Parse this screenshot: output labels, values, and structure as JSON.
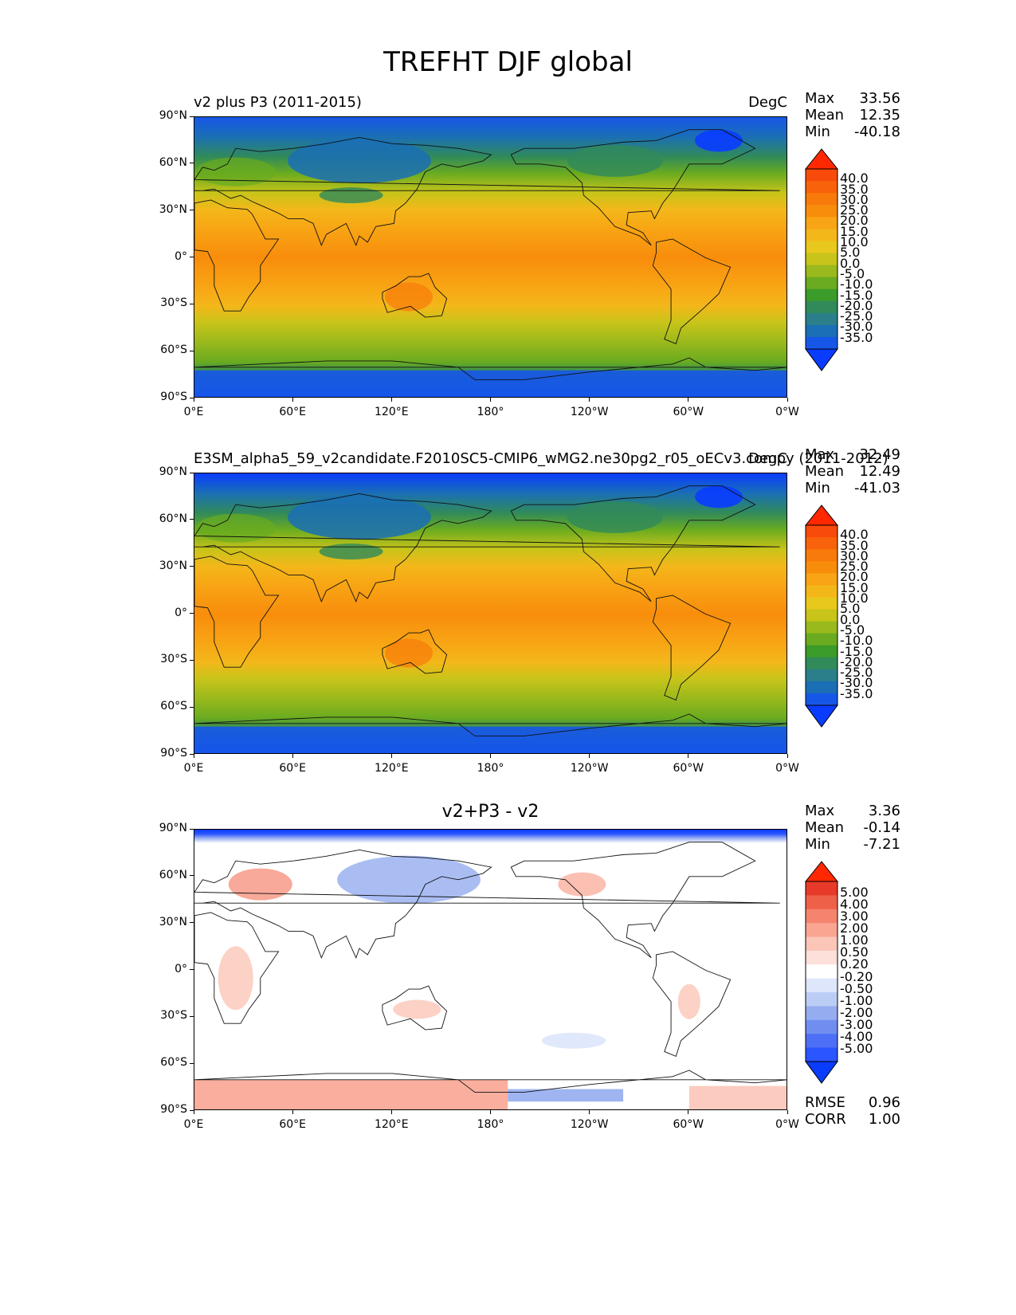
{
  "figure_title": "TREFHT DJF global",
  "panels": [
    {
      "label_left": "v2 plus P3 (2011-2015)",
      "units": "DegC",
      "stats": {
        "max_label": "Max",
        "max": "33.56",
        "mean_label": "Mean",
        "mean": "12.35",
        "min_label": "Min",
        "min": "-40.18"
      },
      "colorbar_labels": [
        "40.0",
        "35.0",
        "30.0",
        "25.0",
        "20.0",
        "15.0",
        "10.0",
        "5.0",
        "0.0",
        "-5.0",
        "-10.0",
        "-15.0",
        "-20.0",
        "-25.0",
        "-30.0",
        "-35.0"
      ]
    },
    {
      "label_left": "E3SM_alpha5_59_v2candidate.F2010SC5-CMIP6_wMG2.ne30pg2_r05_oECv3.compy (2011-2012)",
      "units": "DegC",
      "stats": {
        "max_label": "Max",
        "max": "32.49",
        "mean_label": "Mean",
        "mean": "12.49",
        "min_label": "Min",
        "min": "-41.03"
      },
      "colorbar_labels": [
        "40.0",
        "35.0",
        "30.0",
        "25.0",
        "20.0",
        "15.0",
        "10.0",
        "5.0",
        "0.0",
        "-5.0",
        "-10.0",
        "-15.0",
        "-20.0",
        "-25.0",
        "-30.0",
        "-35.0"
      ]
    },
    {
      "title_center": "v2+P3 - v2",
      "stats": {
        "max_label": "Max",
        "max": "3.36",
        "mean_label": "Mean",
        "mean": "-0.14",
        "min_label": "Min",
        "min": "-7.21"
      },
      "colorbar_labels": [
        "5.00",
        "4.00",
        "3.00",
        "2.00",
        "1.00",
        "0.50",
        "0.20",
        "-0.20",
        "-0.50",
        "-1.00",
        "-2.00",
        "-3.00",
        "-4.00",
        "-5.00"
      ],
      "rmse_label": "RMSE",
      "rmse": "0.96",
      "corr_label": "CORR",
      "corr": "1.00"
    }
  ],
  "x_ticks": [
    "0°E",
    "60°E",
    "120°E",
    "180°",
    "120°W",
    "60°W",
    "0°W"
  ],
  "y_ticks": [
    "90°N",
    "60°N",
    "30°N",
    "0°",
    "30°S",
    "60°S",
    "90°S"
  ],
  "colors": {
    "temp_scale": [
      "#0a3cff",
      "#1757e8",
      "#1a6fb5",
      "#2a7f8a",
      "#318a5a",
      "#3b9c2a",
      "#6aab20",
      "#9ab91c",
      "#c8c41a",
      "#e8c81c",
      "#f4b71a",
      "#f8a414",
      "#f88d0c",
      "#f87a0a",
      "#f8620a",
      "#f84a0a",
      "#ff2800"
    ],
    "diff_scale": [
      "#0a3cff",
      "#2a55ff",
      "#4c6ff5",
      "#6f8ef0",
      "#95acf0",
      "#bccdf5",
      "#dde6fb",
      "#ffffff",
      "#fde0da",
      "#fbc5b8",
      "#f9a592",
      "#f5846e",
      "#ef6049",
      "#e83a28",
      "#ff2800"
    ]
  }
}
